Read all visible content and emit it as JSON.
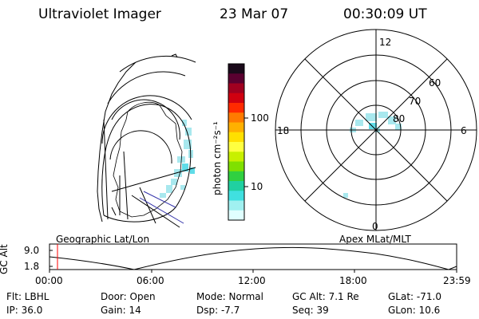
{
  "header": {
    "instrument": "Ultraviolet Imager",
    "date": "23 Mar 07",
    "time": "00:30:09 UT"
  },
  "colorbar": {
    "unit_label": "photon cm⁻²s⁻¹",
    "ticks": [
      "100",
      "10"
    ],
    "colors": [
      "#1a0a1a",
      "#5a0030",
      "#a00020",
      "#d00010",
      "#ff2a00",
      "#ff7a00",
      "#ffb000",
      "#ffe000",
      "#ffff40",
      "#c8f000",
      "#80e000",
      "#30d040",
      "#20d0a0",
      "#40e0e0",
      "#a0f0f0",
      "#e0ffff"
    ]
  },
  "polar_plot": {
    "hour_labels": {
      "top": "12",
      "left": "18",
      "right": "6",
      "bottom": "0"
    },
    "lat_labels": [
      "60",
      "70",
      "80"
    ]
  },
  "map_labels": {
    "left": "Geographic Lat/Lon",
    "right": "Apex MLat/MLT"
  },
  "altitude_plot": {
    "axis_title": "GC Alt",
    "y_ticks": [
      "9.0",
      "1.8"
    ],
    "x_ticks": [
      "00:00",
      "06:00",
      "12:00",
      "18:00",
      "23:59"
    ],
    "marker_color": "#ff0000"
  },
  "info": {
    "flt": "Flt: LBHL",
    "ip": "IP: 36.0",
    "door": "Door: Open",
    "gain": "Gain: 14",
    "mode": "Mode: Normal",
    "dsp": "Dsp:    -7.7",
    "gc_alt": "GC Alt: 7.1 Re",
    "seq": "Seq: 39",
    "glat": "GLat: -71.0",
    "glon": "GLon:  10.6"
  },
  "aurora_color": "#a8e8ee"
}
